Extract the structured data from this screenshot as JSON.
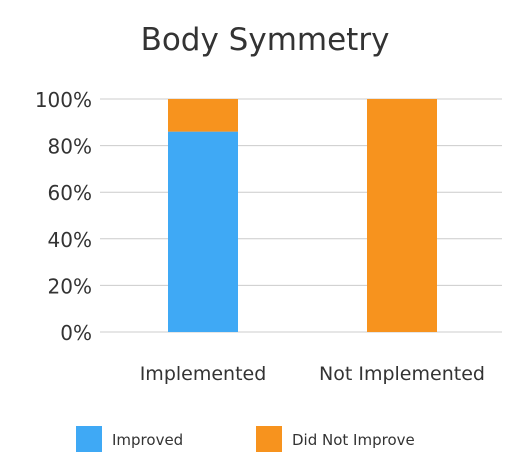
{
  "chart_data": {
    "type": "bar",
    "stacked": true,
    "title": "Body Symmetry",
    "xlabel": "",
    "ylabel": "",
    "categories": [
      "Implemented",
      "Not Implemented"
    ],
    "series": [
      {
        "name": "Improved",
        "values": [
          86,
          0
        ],
        "color": "#3FA9F5"
      },
      {
        "name": "Did Not Improve",
        "values": [
          14,
          100
        ],
        "color": "#F7931E"
      }
    ],
    "ylim": [
      0,
      100
    ],
    "yticks": [
      "0%",
      "20%",
      "40%",
      "60%",
      "80%",
      "100%"
    ],
    "ytick_values": [
      0,
      20,
      40,
      60,
      80,
      100
    ],
    "grid": true,
    "legend_position": "bottom"
  }
}
